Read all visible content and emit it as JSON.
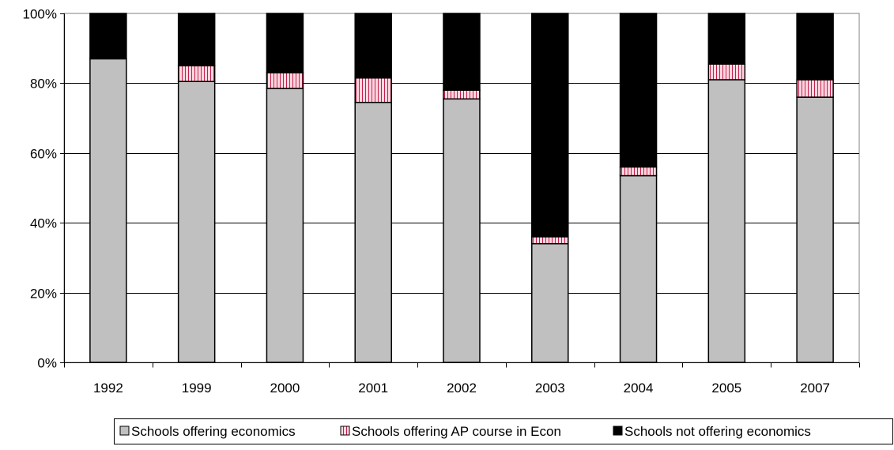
{
  "chart_data": {
    "type": "bar",
    "stacked": true,
    "percent_stacked": true,
    "categories": [
      "1992",
      "1999",
      "2000",
      "2001",
      "2002",
      "2003",
      "2004",
      "2005",
      "2007"
    ],
    "series": [
      {
        "name": "Schools offering economics",
        "color": "#c0c0c0",
        "pattern": "solid",
        "values": [
          87,
          80.5,
          78.5,
          74.5,
          75.5,
          34,
          53.5,
          81,
          76
        ]
      },
      {
        "name": "Schools offering AP course in Econ",
        "color": "#ffc0cb",
        "pattern": "vertical-stripes",
        "values": [
          0,
          4.5,
          4.5,
          7,
          2.5,
          2,
          2.5,
          4.5,
          5
        ]
      },
      {
        "name": "Schools not offering economics",
        "color": "#000000",
        "pattern": "solid",
        "values": [
          13,
          15,
          17,
          18.5,
          22,
          64,
          44,
          14.5,
          19
        ]
      }
    ],
    "y_ticks": [
      "0%",
      "20%",
      "40%",
      "60%",
      "80%",
      "100%"
    ],
    "ylim": [
      0,
      100
    ],
    "grid": true,
    "legend_position": "bottom-right",
    "title": "",
    "xlabel": "",
    "ylabel": ""
  }
}
